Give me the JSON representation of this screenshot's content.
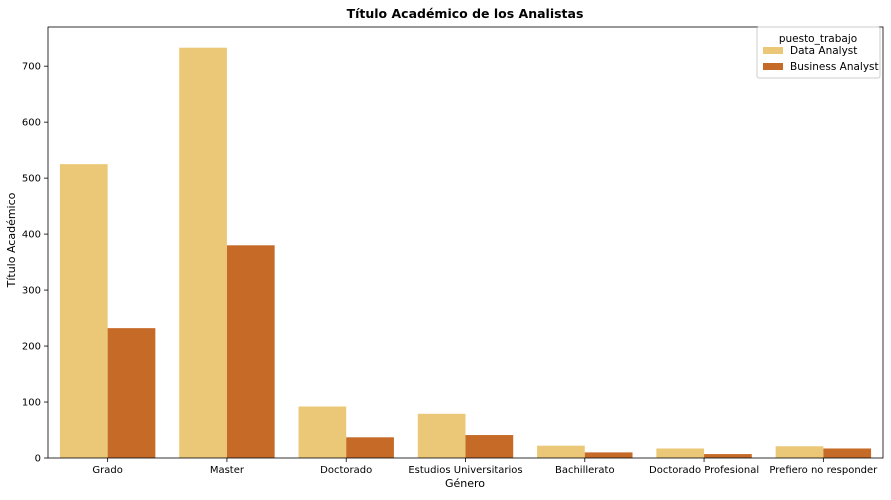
{
  "chart_data": {
    "type": "bar",
    "title": "Título Académico de los Analistas",
    "xlabel": "Género",
    "ylabel": "Título Académico",
    "categories": [
      "Grado",
      "Master",
      "Doctorado",
      "Estudios Universitarios",
      "Bachillerato",
      "Doctorado Profesional",
      "Prefiero no responder"
    ],
    "series": [
      {
        "name": "Data Analyst",
        "color": "#ebc877",
        "values": [
          525,
          733,
          92,
          79,
          22,
          17,
          21
        ]
      },
      {
        "name": "Business Analyst",
        "color": "#c66a28",
        "values": [
          232,
          380,
          37,
          41,
          10,
          7,
          17
        ]
      }
    ],
    "ylim": [
      0,
      770
    ],
    "yticks": [
      0,
      100,
      200,
      300,
      400,
      500,
      600,
      700
    ],
    "legend": {
      "title": "puesto_trabajo",
      "position": "top-right"
    },
    "grid": false
  }
}
